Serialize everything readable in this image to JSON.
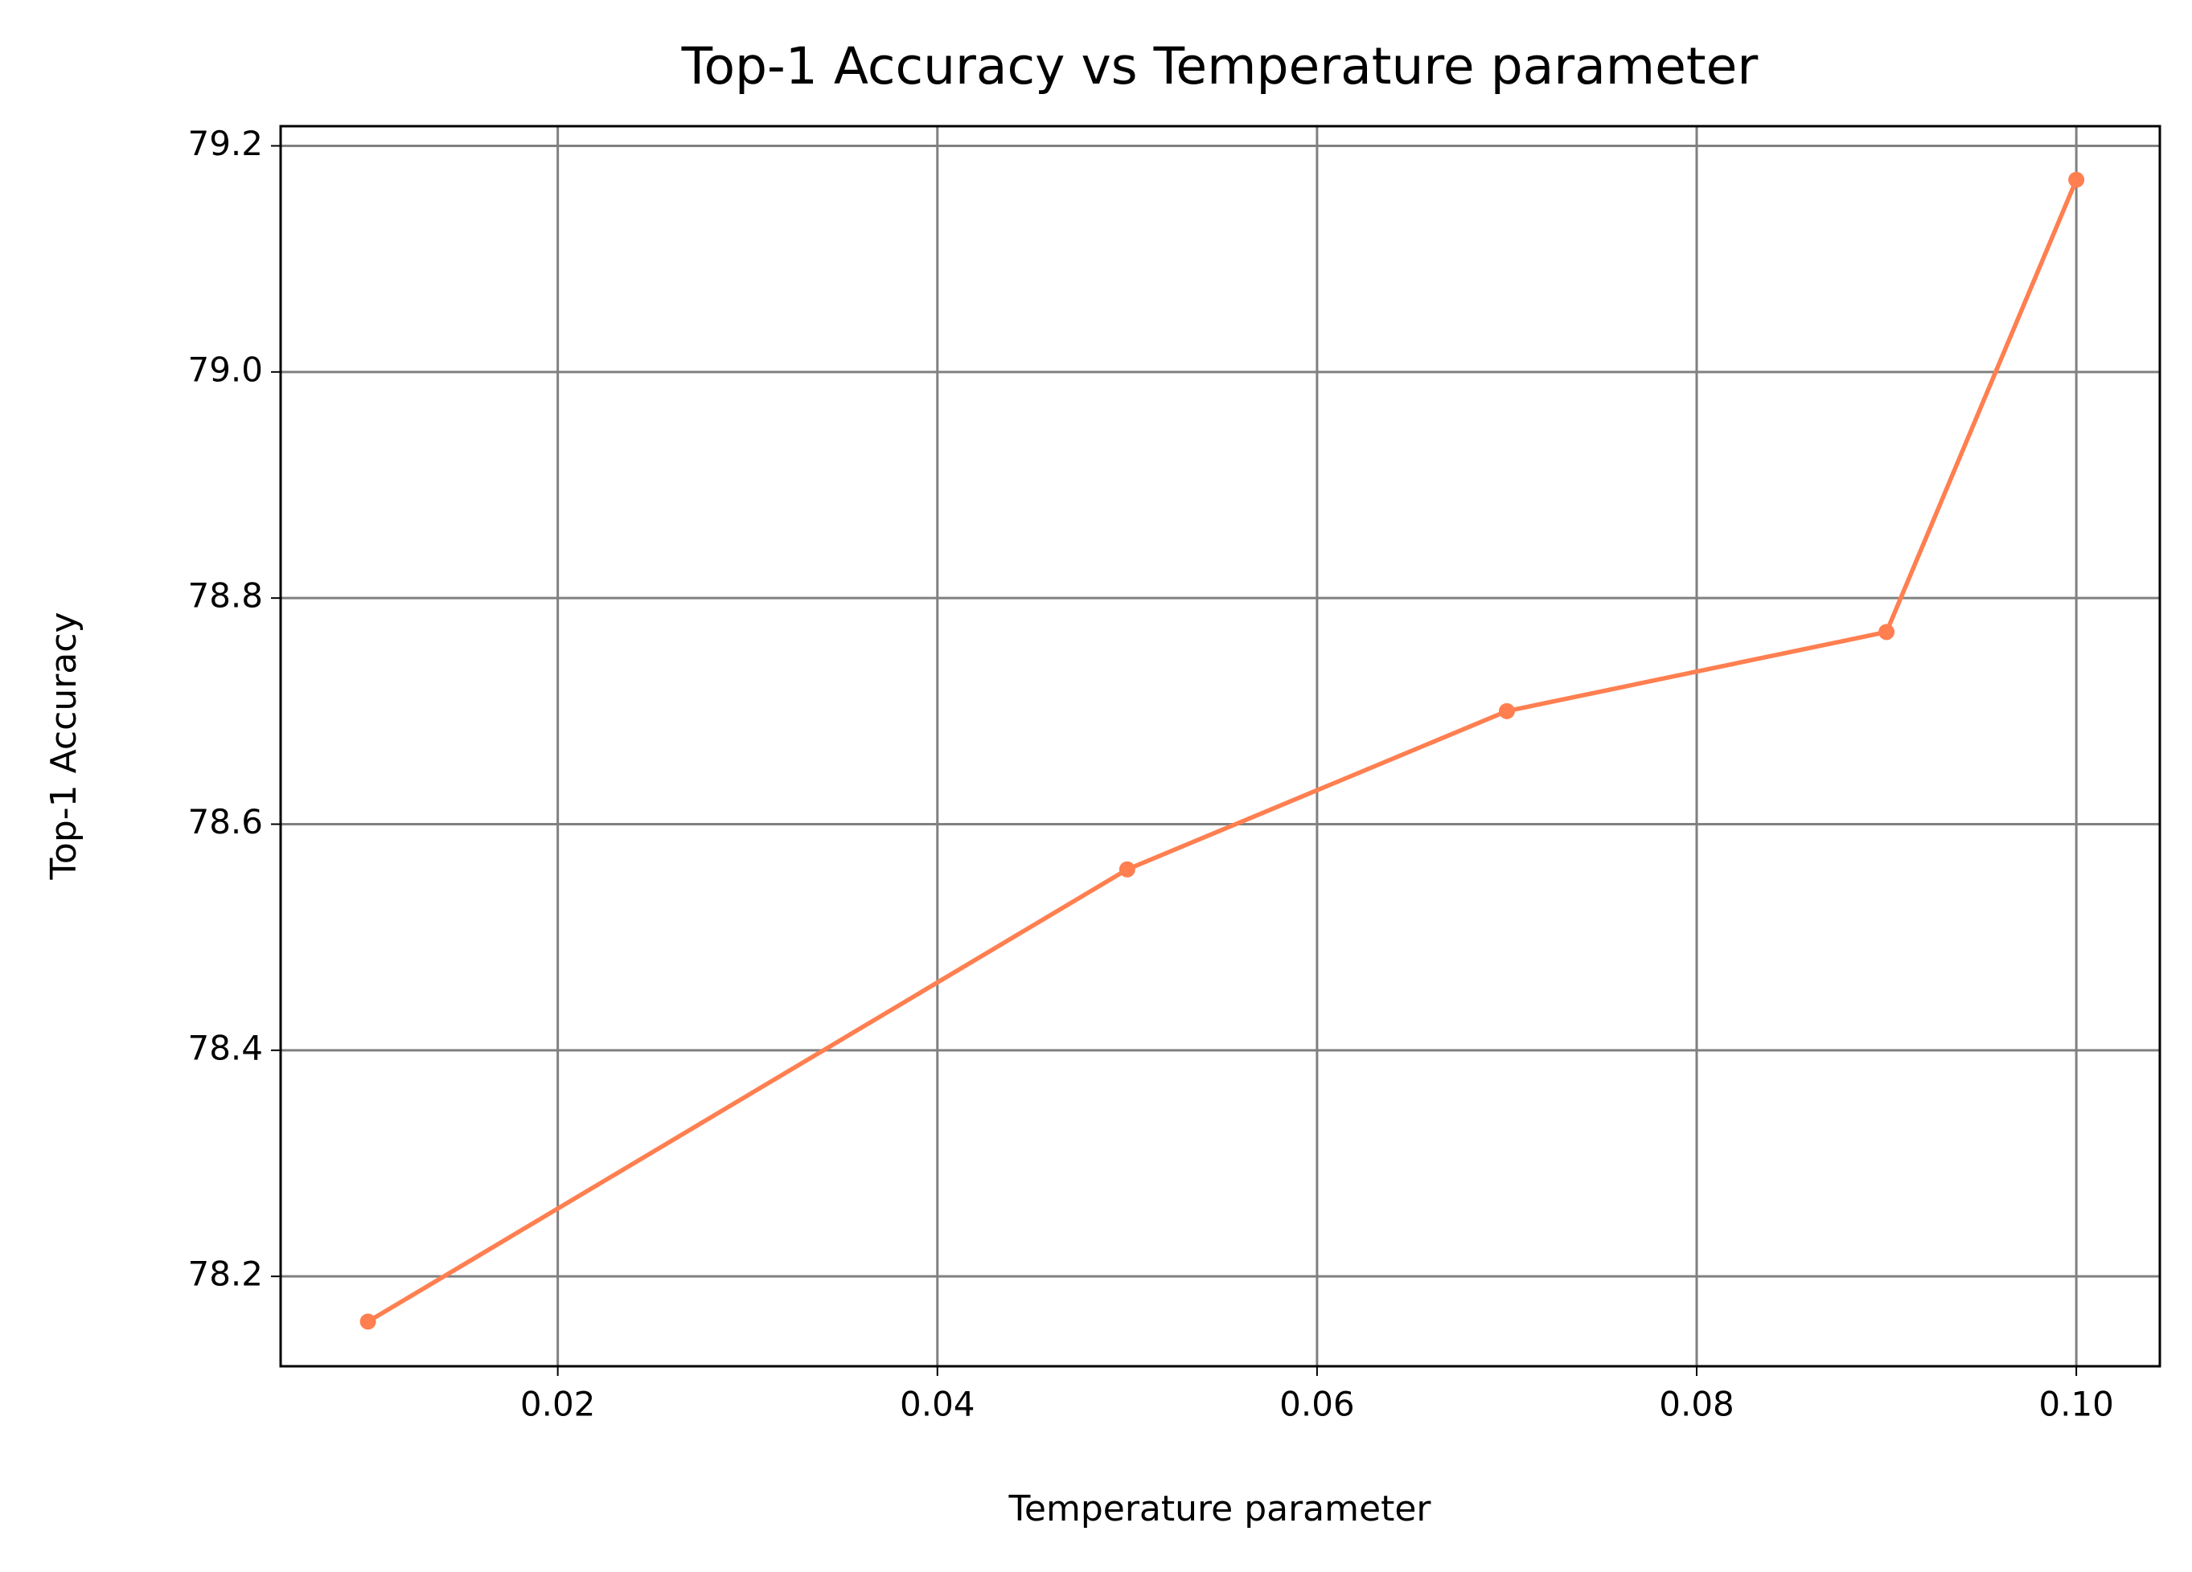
{
  "chart_data": {
    "type": "line",
    "title": "Top-1 Accuracy vs Temperature parameter",
    "x_label": "Temperature parameter",
    "y_label": "Top-1 Accuracy",
    "x": [
      0.01,
      0.05,
      0.07,
      0.09,
      0.1
    ],
    "series": [
      {
        "name": "Top-1 Accuracy",
        "color": "#ff7f50",
        "values": [
          78.16,
          78.56,
          78.7,
          78.77,
          79.17
        ]
      }
    ],
    "xlim": [
      0.0054,
      0.1044
    ],
    "ylim": [
      78.1205,
      79.2174
    ],
    "xticks": [
      0.02,
      0.04,
      0.06,
      0.08,
      {
        "value": 0.1,
        "label": "0.10"
      }
    ],
    "yticks": [
      78.2,
      78.4,
      78.6,
      78.8,
      {
        "value": 79.0,
        "label": "79.0"
      },
      79.2
    ],
    "grid": true
  }
}
